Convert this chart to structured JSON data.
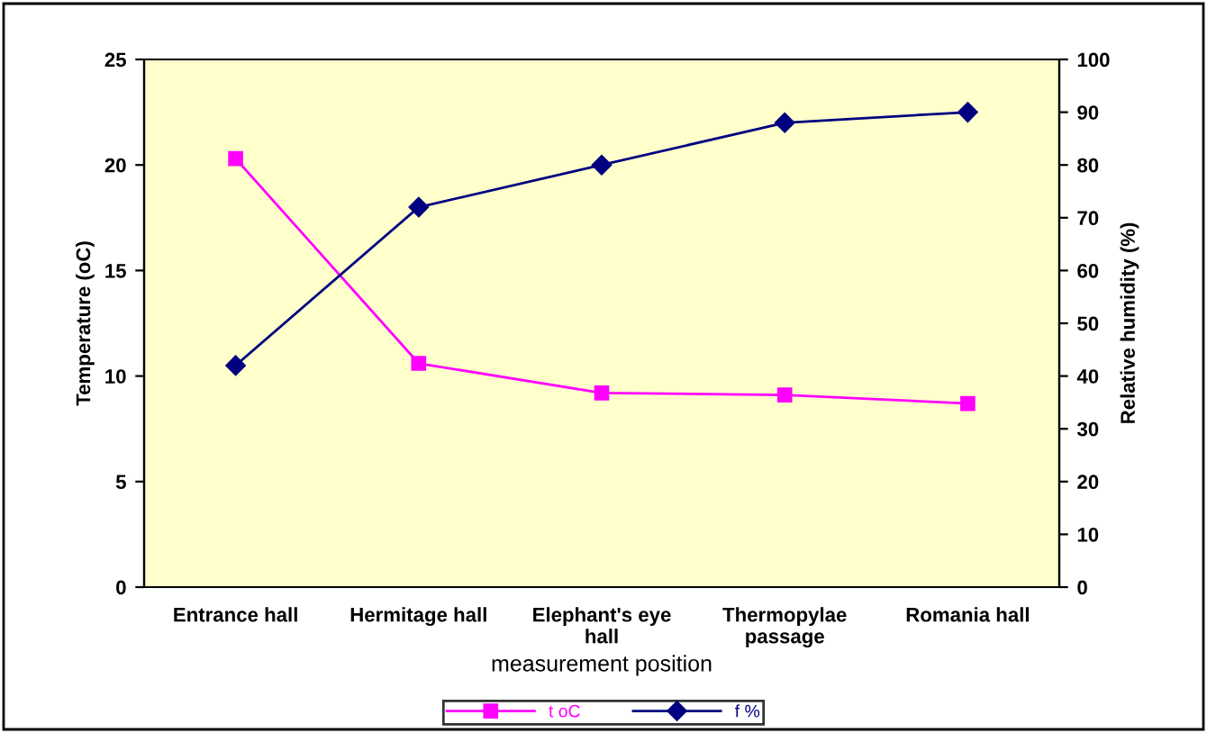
{
  "chart_data": {
    "type": "line",
    "xlabel": "measurement position",
    "ylabel": "Temperature (oC)",
    "y2label": "Relative humidity (%)",
    "categories": [
      "Entrance hall",
      "Hermitage hall",
      "Elephant's eye\nhall",
      "Thermopylae\npassage",
      "Romania hall"
    ],
    "series": [
      {
        "name": "t oC",
        "color": "#ff00ff",
        "marker": "square",
        "values": [
          20.3,
          10.6,
          9.2,
          9.1,
          8.7
        ]
      },
      {
        "name": "f %",
        "color": "#000080",
        "marker": "diamond",
        "axis": "y2",
        "values": [
          42,
          72,
          80,
          88,
          90
        ]
      }
    ],
    "ylim": [
      0,
      25
    ],
    "yticks": [
      0,
      5,
      10,
      15,
      20,
      25
    ],
    "y2lim": [
      0,
      100
    ],
    "y2ticks": [
      0,
      10,
      20,
      30,
      40,
      50,
      60,
      70,
      80,
      90,
      100
    ],
    "grid": false,
    "legend": "bottom",
    "line_style": "solid"
  }
}
